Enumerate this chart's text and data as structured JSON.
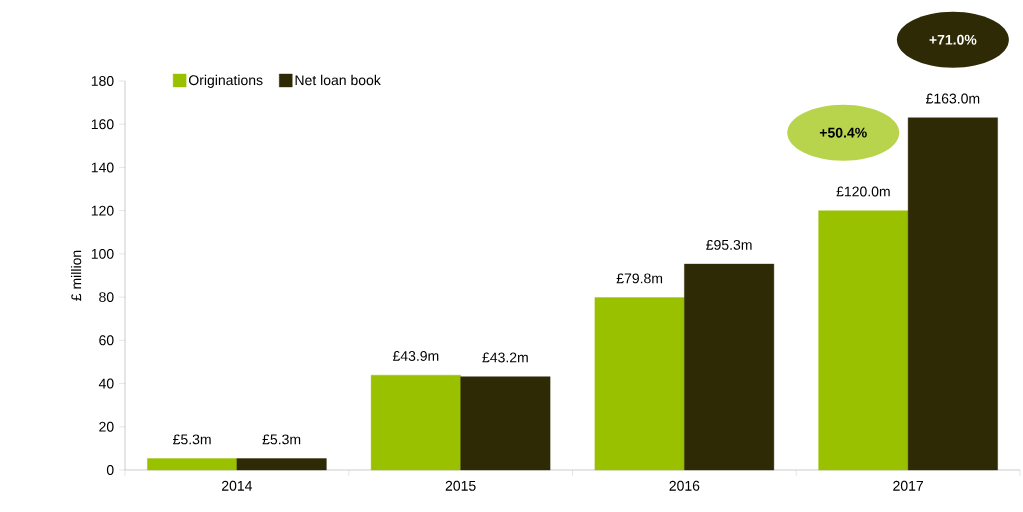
{
  "chart_data": {
    "type": "bar",
    "categories": [
      "2014",
      "2015",
      "2016",
      "2017"
    ],
    "ylabel": "£ million",
    "ylim": [
      0,
      180
    ],
    "yticks": [
      0,
      20,
      40,
      60,
      80,
      100,
      120,
      140,
      160,
      180
    ],
    "series": [
      {
        "name": "Originations",
        "color": "#99c100",
        "values": [
          5.3,
          43.9,
          79.8,
          120.0
        ],
        "value_labels": [
          "£5.3m",
          "£43.9m",
          "£79.8m",
          "£120.0m"
        ]
      },
      {
        "name": "Net loan book",
        "color": "#2e2a05",
        "values": [
          5.3,
          43.2,
          95.3,
          163.0
        ],
        "value_labels": [
          "£5.3m",
          "£43.2m",
          "£95.3m",
          "£163.0m"
        ]
      }
    ],
    "annotations": [
      "+50.4%",
      "+71.0%"
    ],
    "legend": "top left",
    "grid": false
  }
}
